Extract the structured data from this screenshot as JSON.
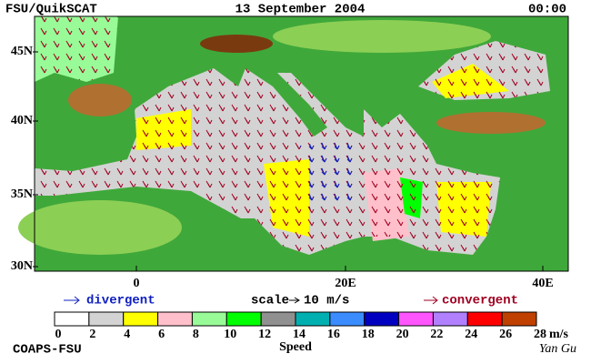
{
  "header": {
    "source": "FSU/QuikSCAT",
    "date": "13 September 2004",
    "time": "00:00"
  },
  "map": {
    "lat_labels": [
      "45N",
      "40N",
      "35N",
      "30N"
    ],
    "lon_labels": [
      "0",
      "20E",
      "40E"
    ]
  },
  "legend": {
    "divergent": "divergent",
    "scale": "scale",
    "scale_value": "10 m/s",
    "convergent": "convergent"
  },
  "colorbar": {
    "colors": [
      "#ffffff",
      "#d3d3d3",
      "#ffff00",
      "#ffc0cb",
      "#98fb98",
      "#00ff00",
      "#909090",
      "#00b0b0",
      "#3a8cff",
      "#0000c0",
      "#ff55ff",
      "#b080ff",
      "#ff0000",
      "#c04000",
      "#000000"
    ],
    "labels": [
      "0",
      "2",
      "4",
      "6",
      "8",
      "10",
      "12",
      "14",
      "16",
      "18",
      "20",
      "22",
      "24",
      "26",
      "28"
    ],
    "unit": "m/s",
    "title": "Speed"
  },
  "footer": {
    "org": "COAPS-FSU",
    "author": "Yan Gu"
  }
}
